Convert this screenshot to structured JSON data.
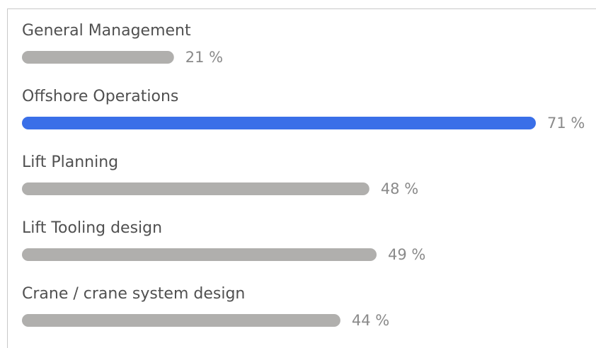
{
  "chart_data": {
    "type": "bar",
    "categories": [
      "General Management",
      "Offshore Operations",
      "Lift Planning",
      "Lift Tooling design",
      "Crane / crane system design"
    ],
    "values": [
      21,
      71,
      48,
      49,
      44
    ],
    "value_labels": [
      "21 %",
      "71 %",
      "48 %",
      "49 %",
      "44 %"
    ],
    "colors": [
      "#b0afad",
      "#3a6fe8",
      "#b0afad",
      "#b0afad",
      "#b0afad"
    ]
  }
}
